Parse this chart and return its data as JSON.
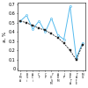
{
  "categories": [
    "F\nM\nA",
    "B\nS\ni",
    "A\nC\ni",
    "C\nF",
    "C\nP",
    "Y\nO\nS\nM",
    "A\nD\nM",
    "J\nP",
    "B\nE\nT\nA",
    "T\nA\nF\nE",
    "M\nG"
  ],
  "blue_line": [
    0.52,
    0.58,
    0.43,
    0.52,
    0.4,
    0.55,
    0.37,
    0.32,
    0.68,
    0.12,
    0.28
  ],
  "dark_line": [
    0.52,
    0.5,
    0.47,
    0.44,
    0.42,
    0.38,
    0.34,
    0.28,
    0.2,
    0.1,
    0.26
  ],
  "ylim": [
    -0.02,
    0.72
  ],
  "yticks": [
    0.0,
    0.1,
    0.2,
    0.3,
    0.4,
    0.5,
    0.6,
    0.7
  ],
  "ytick_labels": [
    "0",
    "0.1",
    "0.2",
    "0.3",
    "0.4",
    "0.5",
    "0.6",
    "0.7"
  ],
  "ylabel": "a, %",
  "blue_color": "#55BBEE",
  "dark_color": "#222222",
  "bg_color": "#ffffff",
  "tick_fontsize": 3.5,
  "label_fontsize": 4.0
}
